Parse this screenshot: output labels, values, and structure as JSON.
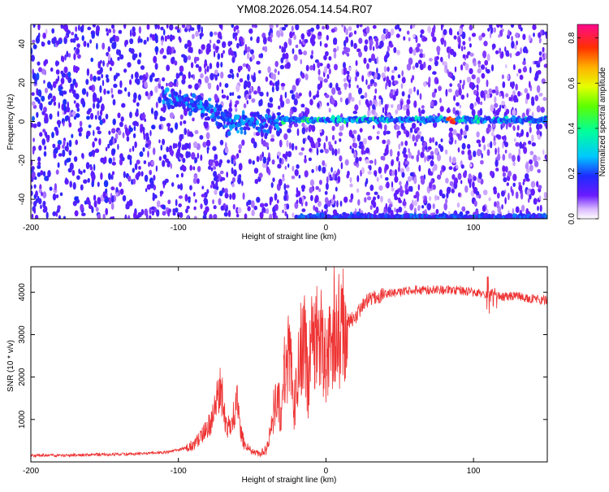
{
  "title": "YM08.2026.054.14.54.R07",
  "chart_data": [
    {
      "type": "heatmap",
      "xlabel": "Height of straight line (km)",
      "ylabel": "Frequency (Hz)",
      "xlim": [
        -200,
        150
      ],
      "ylim": [
        -50,
        50
      ],
      "xticks": [
        -200,
        -100,
        0,
        100
      ],
      "yticks": [
        -40,
        -20,
        0,
        20,
        40
      ],
      "colorbar": {
        "label": "Normalized spectral amplitude",
        "range": [
          0,
          0.86
        ],
        "ticks": [
          "0.0",
          "0.2",
          "0.4",
          "0.6",
          "0.8"
        ]
      },
      "features": [
        {
          "x": [
            -110,
            -90,
            -80,
            -70,
            -60,
            -50,
            -40,
            -30
          ],
          "y": [
            12,
            9,
            6,
            3,
            -2,
            0,
            -1,
            1
          ]
        },
        {
          "x": [
            -30,
            150
          ],
          "y": [
            1,
            1
          ],
          "peak_x": 85,
          "peak_value": 0.86
        },
        {
          "x": [
            -20,
            150
          ],
          "y": [
            -49,
            -49
          ]
        }
      ]
    },
    {
      "type": "line",
      "xlabel": "Height of straight line (km)",
      "ylabel": "SNR (10 * v/v)",
      "xlim": [
        -200,
        150
      ],
      "ylim": [
        0,
        4600
      ],
      "xticks": [
        -200,
        -100,
        0,
        100
      ],
      "yticks": [
        1000,
        2000,
        3000,
        4000
      ],
      "series": [
        {
          "color": "#ee3333",
          "x": [
            -200,
            -180,
            -160,
            -140,
            -120,
            -110,
            -100,
            -90,
            -85,
            -80,
            -75,
            -72,
            -70,
            -68,
            -65,
            -62,
            -60,
            -58,
            -55,
            -50,
            -45,
            -40,
            -38,
            -35,
            -32,
            -30,
            -28,
            -25,
            -22,
            -20,
            -18,
            -15,
            -12,
            -10,
            -5,
            0,
            5,
            10,
            15,
            20,
            25,
            30,
            40,
            50,
            60,
            70,
            80,
            90,
            100,
            105,
            110,
            112,
            115,
            120,
            130,
            140,
            150
          ],
          "y": [
            150,
            150,
            170,
            180,
            200,
            220,
            280,
            400,
            550,
            800,
            1300,
            1700,
            1500,
            900,
            800,
            1200,
            1400,
            700,
            400,
            250,
            200,
            300,
            700,
            1300,
            1400,
            1000,
            2200,
            2700,
            1300,
            1700,
            2500,
            2900,
            1800,
            2700,
            3000,
            2200,
            3000,
            3100,
            3300,
            3400,
            3700,
            3850,
            3950,
            4000,
            4050,
            4050,
            4050,
            4050,
            4000,
            3950,
            3900,
            4000,
            3950,
            3900,
            3900,
            3850,
            3800
          ]
        }
      ]
    }
  ]
}
